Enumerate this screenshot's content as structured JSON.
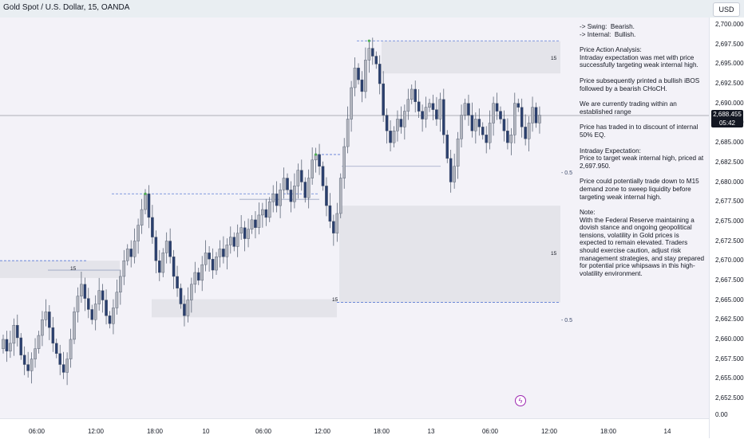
{
  "header": {
    "symbol_title": "Gold Spot / U.S. Dollar, 15, OANDA",
    "currency_button": "USD"
  },
  "price_tag": {
    "price": "2,688.455",
    "countdown": "05:42"
  },
  "notes_panel": {
    "lines": [
      "-> Swing:  Bearish.",
      "-> Internal:  Bullish.",
      "",
      "Price Action Analysis:",
      "Intraday expectation was met with price successfully targeting weak internal high.",
      "",
      "Price subsequently printed a bullish iBOS followed by a bearish CHoCH.",
      "",
      "We are currently trading within an established range",
      "",
      "Price has traded in to discount of internal 50% EQ.",
      "",
      "Intraday Expectation:",
      "Price to target weak internal high, priced at 2,697.950.",
      "",
      "Price could potentially trade down to M15 demand zone to sweep liquidity before targeting weak internal high.",
      "",
      "Note:",
      "With the Federal Reserve maintaining a dovish stance and ongoing geopolitical tensions, volatility in Gold prices is expected to remain elevated. Traders should exercise caution, adjust risk management strategies, and stay prepared for potential price whipsaws in this high-volatility environment."
    ]
  },
  "annotations": {
    "zone_tf_label": "15",
    "eq_label": "0.5"
  },
  "colors": {
    "bull": "#b2b5be",
    "bear": "#2a3f6e",
    "wick": "#4a5568",
    "zone": "#e4e4ea",
    "dashed": "#5b7bd5",
    "line": "#9aa6c2",
    "marker": "#4caf50",
    "indicator": "#9c27b0"
  },
  "chart_data": {
    "type": "candlestick",
    "symbol": "Gold Spot / U.S. Dollar",
    "timeframe": "15",
    "source": "OANDA",
    "y_ticks": [
      "2,700.000",
      "2,697.500",
      "2,695.000",
      "2,692.500",
      "2,690.000",
      "2,687.500",
      "2,685.000",
      "2,682.500",
      "2,680.000",
      "2,677.500",
      "2,675.000",
      "2,672.500",
      "2,670.000",
      "2,667.500",
      "2,665.000",
      "2,662.500",
      "2,660.000",
      "2,657.500",
      "2,655.000",
      "2,652.500",
      "0.00"
    ],
    "x_ticks": [
      "06:00",
      "12:00",
      "18:00",
      "10",
      "06:00",
      "12:00",
      "18:00",
      "13",
      "06:00",
      "12:00",
      "18:00",
      "14"
    ],
    "current_price": 2688.455,
    "weak_internal_high": 2697.95,
    "zones": [
      {
        "name": "supply-zone",
        "from": 2693.8,
        "to": 2697.9
      },
      {
        "name": "demand-zone-left",
        "from": 2667.8,
        "to": 2670.0
      },
      {
        "name": "demand-zone-low",
        "from": 2662.8,
        "to": 2665.1
      },
      {
        "name": "demand-zone-m15",
        "from": 2664.7,
        "to": 2677.0
      }
    ],
    "closes": [
      2660.0,
      2658.5,
      2659.5,
      2661.8,
      2660.2,
      2658.0,
      2656.8,
      2656.0,
      2657.5,
      2658.8,
      2660.5,
      2662.5,
      2663.5,
      2661.5,
      2659.5,
      2658.2,
      2656.8,
      2655.8,
      2657.5,
      2660.0,
      2663.5,
      2665.5,
      2667.0,
      2665.2,
      2663.8,
      2662.5,
      2664.5,
      2666.2,
      2665.0,
      2663.0,
      2662.0,
      2664.0,
      2666.0,
      2668.0,
      2670.0,
      2671.5,
      2670.5,
      2672.5,
      2674.5,
      2676.5,
      2678.5,
      2675.5,
      2673.0,
      2670.0,
      2668.5,
      2671.0,
      2672.5,
      2670.5,
      2668.0,
      2666.5,
      2664.5,
      2663.0,
      2665.0,
      2667.0,
      2668.5,
      2667.5,
      2669.5,
      2671.0,
      2670.2,
      2668.8,
      2670.5,
      2671.5,
      2670.5,
      2672.0,
      2673.0,
      2671.8,
      2673.5,
      2674.2,
      2672.8,
      2674.0,
      2675.2,
      2674.2,
      2675.8,
      2676.5,
      2675.5,
      2677.5,
      2678.5,
      2677.0,
      2679.0,
      2680.5,
      2679.0,
      2677.5,
      2679.5,
      2681.5,
      2680.0,
      2678.0,
      2680.5,
      2682.8,
      2683.5,
      2682.0,
      2679.5,
      2677.0,
      2675.0,
      2673.5,
      2676.0,
      2680.5,
      2684.5,
      2688.0,
      2692.0,
      2694.5,
      2693.0,
      2691.5,
      2695.5,
      2697.0,
      2696.0,
      2695.0,
      2692.5,
      2688.5,
      2686.5,
      2685.0,
      2686.5,
      2688.0,
      2687.0,
      2689.0,
      2690.5,
      2691.8,
      2690.2,
      2689.0,
      2688.0,
      2689.5,
      2690.0,
      2689.2,
      2688.0,
      2690.5,
      2686.0,
      2683.0,
      2680.0,
      2682.0,
      2685.5,
      2688.5,
      2690.0,
      2688.5,
      2686.5,
      2688.0,
      2687.0,
      2686.0,
      2685.0,
      2687.5,
      2690.0,
      2689.0,
      2688.0,
      2686.5,
      2685.0,
      2686.0,
      2690.0,
      2689.5,
      2687.0,
      2685.5,
      2687.5,
      2689.5,
      2687.5,
      2688.5
    ],
    "marked_highs": [
      {
        "index": 40,
        "price": 2678.5
      },
      {
        "index": 88,
        "price": 2683.5
      },
      {
        "index": 103,
        "price": 2697.95
      }
    ]
  }
}
